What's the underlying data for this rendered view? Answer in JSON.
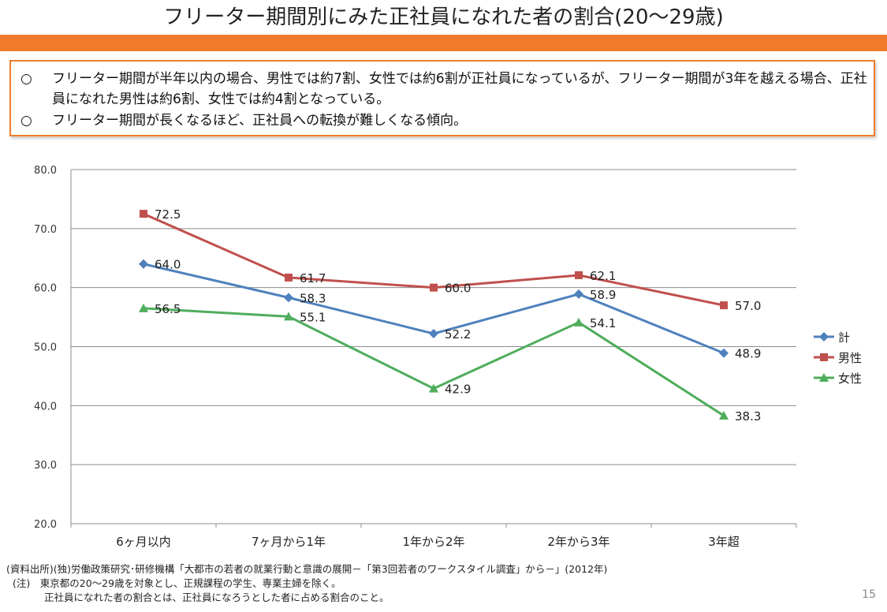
{
  "title": "フリーター期間別にみた正社員になれた者の割合(20～29歳)",
  "summary": {
    "bullet": "○",
    "point1": "フリーター期間が半年以内の場合、男性では約7割、女性では約6割が正社員になっているが、フリーター期間が3年を越える場合、正社員になれた男性は約6割、女性では約4割となっている。",
    "point2": "フリーター期間が長くなるほど、正社員への転換が難しくなる傾向。"
  },
  "chart_data": {
    "type": "line",
    "categories": [
      "6ヶ月以内",
      "7ヶ月から1年",
      "1年から2年",
      "2年から3年",
      "3年超"
    ],
    "series": [
      {
        "name": "計",
        "values": [
          64.0,
          58.3,
          52.2,
          58.9,
          48.9
        ],
        "color": "#4f81bd",
        "marker": "diamond"
      },
      {
        "name": "男性",
        "values": [
          72.5,
          61.7,
          60.0,
          62.1,
          57.0
        ],
        "color": "#c0504d",
        "marker": "square"
      },
      {
        "name": "女性",
        "values": [
          56.5,
          55.1,
          42.9,
          54.1,
          38.3
        ],
        "color": "#4fad5b",
        "marker": "triangle"
      }
    ],
    "yticks": [
      "20.0",
      "30.0",
      "40.0",
      "50.0",
      "60.0",
      "70.0",
      "80.0"
    ],
    "ylim": [
      20,
      80
    ],
    "grid": true,
    "legend": "right"
  },
  "footer": {
    "source": "(資料出所)(独)労働政策研究･研修機構「大都市の若者の就業行動と意識の展開－「第3回若者のワークスタイル調査」から－」(2012年)",
    "note1": "(注)　東京都の20～29歳を対象とし、正規課程の学生、専業主婦を除く。",
    "note2": "正社員になれた者の割合とは、正社員になろうとした者に占める割合のこと。"
  },
  "page_number": "15"
}
